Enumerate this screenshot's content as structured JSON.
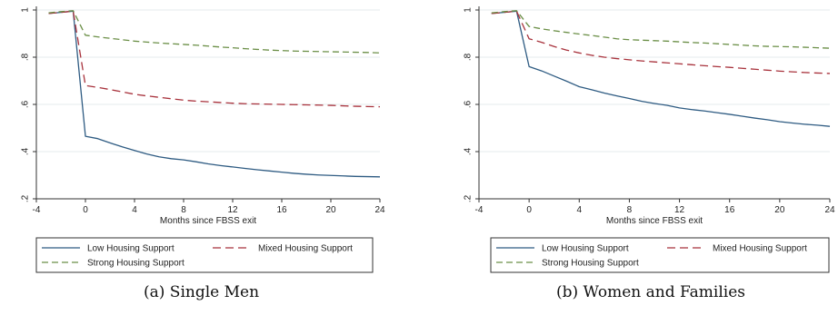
{
  "colors": {
    "low": "#2e5b82",
    "mixed": "#a8323c",
    "strong": "#6b8f47",
    "grid": "#e6ebee",
    "axis": "#333333"
  },
  "legend": [
    "Low Housing Support",
    "Mixed Housing Support",
    "Strong Housing Support"
  ],
  "captions": [
    "(a) Single Men",
    "(b) Women and Families"
  ],
  "chart_data": [
    {
      "type": "line",
      "title": "",
      "xlabel": "Months since FBSS exit",
      "ylabel": "",
      "xlim": [
        -4,
        24
      ],
      "ylim": [
        0.2,
        1.0
      ],
      "xticks": [
        -4,
        0,
        4,
        8,
        12,
        16,
        20,
        24
      ],
      "yticks": [
        0.2,
        0.4,
        0.6,
        0.8,
        1.0
      ],
      "xtick_labels": [
        "-4",
        "0",
        "4",
        "8",
        "12",
        "16",
        "20",
        "24"
      ],
      "ytick_labels": [
        ".2",
        ".4",
        ".6",
        ".8",
        "1"
      ],
      "grid": true,
      "legend_position": "bottom",
      "x": [
        -3,
        -2,
        -1,
        0,
        1,
        2,
        3,
        4,
        5,
        6,
        7,
        8,
        9,
        10,
        11,
        12,
        13,
        14,
        15,
        16,
        17,
        18,
        19,
        20,
        21,
        22,
        23,
        24
      ],
      "series": [
        {
          "name": "Low Housing Support",
          "values": [
            0.985,
            0.99,
            0.995,
            0.465,
            0.455,
            0.437,
            0.42,
            0.405,
            0.39,
            0.378,
            0.37,
            0.365,
            0.357,
            0.348,
            0.341,
            0.335,
            0.329,
            0.323,
            0.318,
            0.313,
            0.308,
            0.304,
            0.301,
            0.299,
            0.297,
            0.295,
            0.294,
            0.293
          ]
        },
        {
          "name": "Mixed Housing Support",
          "values": [
            0.985,
            0.99,
            0.995,
            0.68,
            0.672,
            0.663,
            0.653,
            0.643,
            0.636,
            0.63,
            0.624,
            0.618,
            0.614,
            0.611,
            0.608,
            0.605,
            0.603,
            0.602,
            0.601,
            0.6,
            0.599,
            0.598,
            0.597,
            0.596,
            0.594,
            0.592,
            0.591,
            0.59
          ]
        },
        {
          "name": "Strong Housing Support",
          "values": [
            0.988,
            0.993,
            0.997,
            0.893,
            0.886,
            0.88,
            0.874,
            0.868,
            0.864,
            0.86,
            0.857,
            0.854,
            0.851,
            0.847,
            0.843,
            0.84,
            0.836,
            0.833,
            0.83,
            0.828,
            0.826,
            0.825,
            0.824,
            0.823,
            0.822,
            0.821,
            0.82,
            0.818
          ]
        }
      ]
    },
    {
      "type": "line",
      "title": "",
      "xlabel": "Months since FBSS exit",
      "ylabel": "",
      "xlim": [
        -4,
        24
      ],
      "ylim": [
        0.2,
        1.0
      ],
      "xticks": [
        -4,
        0,
        4,
        8,
        12,
        16,
        20,
        24
      ],
      "yticks": [
        0.2,
        0.4,
        0.6,
        0.8,
        1.0
      ],
      "xtick_labels": [
        "-4",
        "0",
        "4",
        "8",
        "12",
        "16",
        "20",
        "24"
      ],
      "ytick_labels": [
        ".2",
        ".4",
        ".6",
        ".8",
        "1"
      ],
      "grid": true,
      "legend_position": "bottom",
      "x": [
        -3,
        -2,
        -1,
        0,
        1,
        2,
        3,
        4,
        5,
        6,
        7,
        8,
        9,
        10,
        11,
        12,
        13,
        14,
        15,
        16,
        17,
        18,
        19,
        20,
        21,
        22,
        23,
        24
      ],
      "series": [
        {
          "name": "Low Housing Support",
          "values": [
            0.985,
            0.99,
            0.995,
            0.76,
            0.742,
            0.72,
            0.698,
            0.675,
            0.662,
            0.648,
            0.636,
            0.625,
            0.613,
            0.604,
            0.596,
            0.585,
            0.578,
            0.572,
            0.565,
            0.558,
            0.55,
            0.542,
            0.535,
            0.527,
            0.521,
            0.516,
            0.512,
            0.507
          ]
        },
        {
          "name": "Mixed Housing Support",
          "values": [
            0.985,
            0.99,
            0.995,
            0.878,
            0.863,
            0.845,
            0.83,
            0.818,
            0.808,
            0.8,
            0.794,
            0.789,
            0.784,
            0.78,
            0.776,
            0.772,
            0.768,
            0.764,
            0.76,
            0.757,
            0.753,
            0.749,
            0.745,
            0.741,
            0.738,
            0.735,
            0.733,
            0.731
          ]
        },
        {
          "name": "Strong Housing Support",
          "values": [
            0.988,
            0.993,
            0.997,
            0.93,
            0.92,
            0.912,
            0.905,
            0.898,
            0.892,
            0.885,
            0.878,
            0.874,
            0.872,
            0.87,
            0.868,
            0.865,
            0.862,
            0.86,
            0.857,
            0.854,
            0.851,
            0.848,
            0.846,
            0.845,
            0.844,
            0.842,
            0.84,
            0.838
          ]
        }
      ]
    }
  ]
}
